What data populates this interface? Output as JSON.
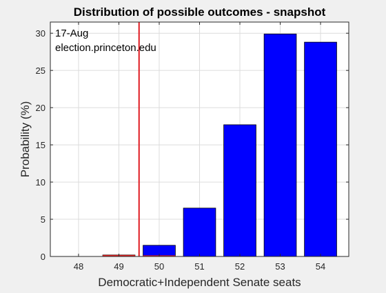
{
  "chart_data": {
    "type": "bar",
    "title": "Distribution of possible outcomes - snapshot",
    "xlabel": "Democratic+Independent Senate seats",
    "ylabel": "Probability (%)",
    "categories": [
      "48",
      "49",
      "50",
      "51",
      "52",
      "53",
      "54"
    ],
    "series": [
      {
        "values": [
          0.0,
          0.2,
          1.5,
          6.5,
          17.7,
          29.9,
          28.8
        ]
      }
    ],
    "red_portion": [
      0.0,
      0.2,
      0.15,
      0.0,
      0.0,
      0.0,
      0.0
    ],
    "xlim": [
      47.3,
      54.7
    ],
    "ylim": [
      0,
      31.5
    ],
    "yticks": [
      0,
      5,
      10,
      15,
      20,
      25,
      30
    ],
    "threshold_x": 49.5,
    "grid": true,
    "annotations": [
      "17-Aug",
      "election.princeton.edu"
    ],
    "colors": {
      "bar": "#0000ff",
      "highlight": "#d62020",
      "threshold": "#e0191f",
      "grid": "#dcdcdc",
      "background": "#f0f0f0",
      "plot_bg": "#ffffff"
    }
  }
}
